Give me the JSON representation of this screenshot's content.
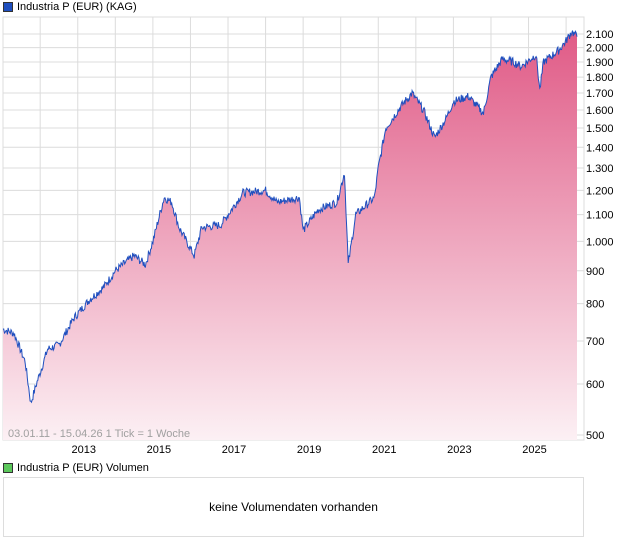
{
  "legend_main": "Industria P (EUR) (KAG)",
  "legend_volume": "Industria P (EUR) Volumen",
  "range_info": "03.01.11 - 15.04.26   1 Tick = 1 Woche",
  "volume_message": "keine Volumendaten vorhanden",
  "colors": {
    "line": "#1f4fbf",
    "fill_top": "#e05a86",
    "fill_bottom": "#fcf0f4",
    "grid": "#dcdcdc",
    "volume_swatch": "#5cc85c"
  },
  "chart_data": {
    "type": "area",
    "title": "Industria P (EUR) (KAG)",
    "xlabel": "",
    "ylabel": "",
    "yscale": "log",
    "xlim": [
      2011.01,
      2026.29
    ],
    "ylim": [
      500,
      2250
    ],
    "grid": true,
    "x_tick_labels": [
      "2013",
      "2015",
      "2017",
      "2019",
      "2021",
      "2023",
      "2025"
    ],
    "y_ticks": [
      500,
      600,
      700,
      800,
      900,
      1000,
      1100,
      1200,
      1300,
      1400,
      1500,
      1600,
      1700,
      1800,
      1900,
      2000,
      2100
    ],
    "y_tick_labels": [
      "500",
      "600",
      "700",
      "800",
      "900",
      "1.000",
      "1.100",
      "1.200",
      "1.300",
      "1.400",
      "1.500",
      "1.600",
      "1.700",
      "1.800",
      "1.900",
      "2.000",
      "2.100"
    ],
    "series": [
      {
        "name": "Industria P (EUR)",
        "x": [
          2011.01,
          2011.3,
          2011.6,
          2011.75,
          2011.9,
          2012.2,
          2012.5,
          2012.9,
          2013.3,
          2013.7,
          2014.0,
          2014.5,
          2014.8,
          2015.0,
          2015.3,
          2015.5,
          2015.7,
          2016.1,
          2016.3,
          2016.8,
          2017.0,
          2017.4,
          2018.0,
          2018.3,
          2018.9,
          2019.0,
          2019.4,
          2019.9,
          2020.1,
          2020.2,
          2020.4,
          2020.9,
          2021.0,
          2021.2,
          2021.6,
          2021.9,
          2022.2,
          2022.5,
          2022.8,
          2023.0,
          2023.4,
          2023.8,
          2024.0,
          2024.3,
          2024.6,
          2024.8,
          2025.2,
          2025.3,
          2025.4,
          2025.8,
          2026.0,
          2026.15,
          2026.29
        ],
        "values": [
          730,
          720,
          650,
          560,
          600,
          680,
          690,
          760,
          810,
          850,
          900,
          950,
          920,
          1000,
          1170,
          1150,
          1050,
          950,
          1050,
          1060,
          1100,
          1190,
          1200,
          1150,
          1170,
          1040,
          1120,
          1150,
          1280,
          920,
          1100,
          1170,
          1300,
          1500,
          1620,
          1700,
          1600,
          1450,
          1550,
          1650,
          1680,
          1580,
          1800,
          1920,
          1900,
          1870,
          1950,
          1720,
          1900,
          1980,
          2050,
          2120,
          2080
        ]
      }
    ]
  }
}
